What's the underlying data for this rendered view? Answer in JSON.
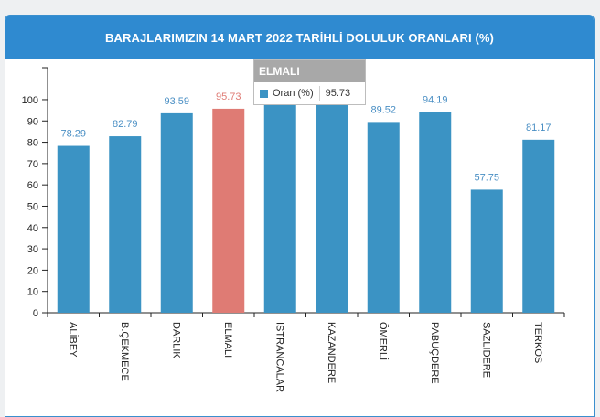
{
  "chart_data": {
    "type": "bar",
    "title": "BARAJLARIMIZIN 14 MART 2022 TARİHLİ DOLULUK ORANLARI (%)",
    "categories": [
      "ALİBEY",
      "B.ÇEKMECE",
      "DARLIK",
      "ELMALI",
      "ISTRANCALAR",
      "KAZANDERE",
      "ÖMERLİ",
      "PABUÇDERE",
      "SAZLIDERE",
      "TERKOS"
    ],
    "series": [
      {
        "name": "Oran (%)",
        "values": [
          78.29,
          82.79,
          93.59,
          95.73,
          100,
          100,
          89.52,
          94.19,
          57.75,
          81.17
        ],
        "labels": [
          "78.29",
          "82.79",
          "93.59",
          "95.73",
          "",
          "",
          "89.52",
          "94.19",
          "57.75",
          "81.17"
        ]
      }
    ],
    "yticks": [
      0,
      10,
      20,
      30,
      40,
      50,
      60,
      70,
      80,
      90,
      100
    ],
    "ylim": [
      0,
      115
    ],
    "highlight_index": 3,
    "colors": {
      "bar": "#3b93c4",
      "highlight": "#df7b74",
      "label": "#4a8fc4"
    }
  },
  "tooltip": {
    "title": "ELMALI",
    "series_name": "Oran (%)",
    "value": "95.73",
    "swatch_color": "#3b93c4"
  }
}
